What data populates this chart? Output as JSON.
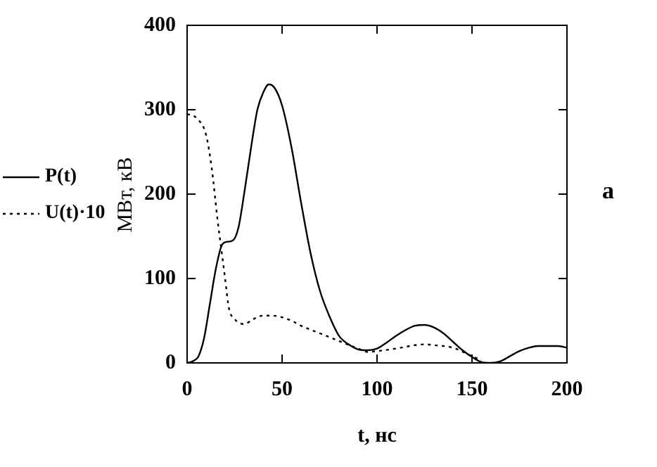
{
  "chart_data": {
    "type": "line",
    "xlabel": "t, нс",
    "ylabel": "МВт, кВ",
    "annotations": [
      "а"
    ],
    "xlim": [
      0,
      200
    ],
    "xticks": [
      0,
      50,
      100,
      150,
      200
    ],
    "ylim": [
      0,
      400
    ],
    "yticks": [
      0,
      100,
      200,
      300,
      400
    ],
    "grid": false,
    "legend": "left",
    "marker": "none",
    "series": [
      {
        "name": "P(t)",
        "color": "#000000",
        "line_style": "solid",
        "x": [
          0,
          3,
          6,
          9,
          12,
          15,
          18,
          20,
          24,
          27,
          30,
          34,
          37,
          40,
          43,
          46,
          50,
          55,
          60,
          65,
          70,
          75,
          80,
          85,
          90,
          95,
          100,
          105,
          110,
          115,
          120,
          125,
          130,
          135,
          140,
          145,
          150,
          155,
          160,
          165,
          170,
          175,
          180,
          185,
          190,
          195,
          200
        ],
        "values": [
          0,
          2,
          8,
          30,
          70,
          110,
          138,
          143,
          145,
          160,
          200,
          260,
          300,
          320,
          330,
          326,
          305,
          255,
          190,
          130,
          85,
          55,
          32,
          22,
          16,
          15,
          17,
          24,
          32,
          39,
          44,
          45,
          42,
          35,
          25,
          15,
          7,
          1,
          0,
          2,
          8,
          14,
          18,
          20,
          20,
          20,
          18
        ]
      },
      {
        "name": "U(t)·10",
        "color": "#000000",
        "line_style": "dotted",
        "x": [
          0,
          5,
          10,
          13,
          16,
          18,
          20,
          22,
          25,
          30,
          35,
          40,
          45,
          50,
          55,
          60,
          70,
          80,
          90,
          95,
          100,
          110,
          120,
          125,
          130,
          140,
          150,
          155
        ],
        "values": [
          295,
          290,
          270,
          230,
          170,
          135,
          100,
          65,
          52,
          46,
          52,
          56,
          56,
          54,
          50,
          44,
          35,
          26,
          17,
          13,
          14,
          17,
          21,
          22,
          21,
          18,
          8,
          3
        ]
      }
    ]
  }
}
